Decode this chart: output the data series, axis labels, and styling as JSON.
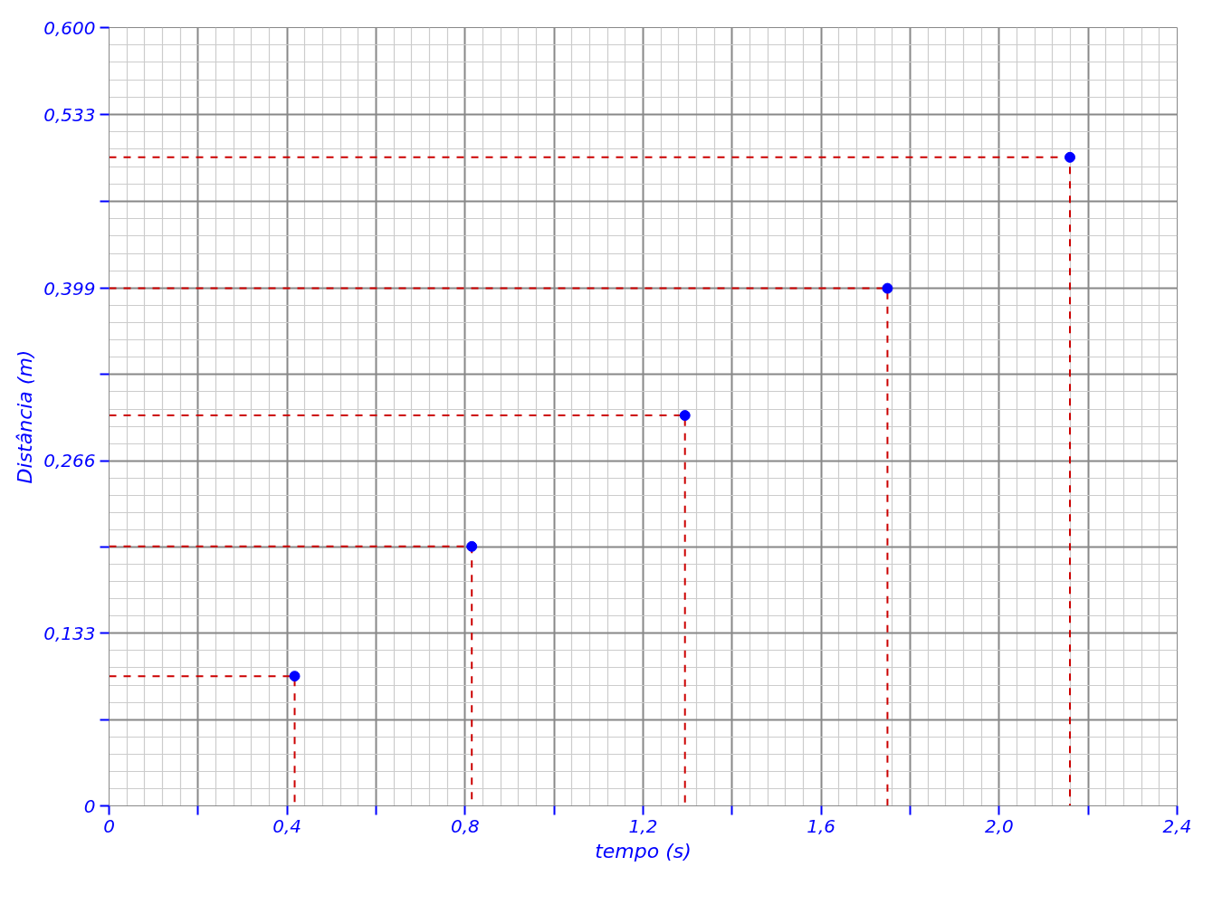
{
  "chart_data": {
    "type": "scatter",
    "xlabel": "tempo (s)",
    "ylabel": "Distância (m)",
    "xlim": [
      0,
      2.4
    ],
    "ylim": [
      0,
      0.6
    ],
    "xticks": [
      {
        "value": 0,
        "label": "0"
      },
      {
        "value": 0.2,
        "label": null
      },
      {
        "value": 0.4,
        "label": "0,4"
      },
      {
        "value": 0.6,
        "label": null
      },
      {
        "value": 0.8,
        "label": "0,8"
      },
      {
        "value": 1.0,
        "label": null
      },
      {
        "value": 1.2,
        "label": "1,2"
      },
      {
        "value": 1.4,
        "label": null
      },
      {
        "value": 1.6,
        "label": "1,6"
      },
      {
        "value": 1.8,
        "label": null
      },
      {
        "value": 2.0,
        "label": "2,0"
      },
      {
        "value": 2.2,
        "label": null
      },
      {
        "value": 2.4,
        "label": "2,4"
      }
    ],
    "yticks": [
      {
        "value": 0,
        "label": "0"
      },
      {
        "value": 0.0665,
        "label": null
      },
      {
        "value": 0.133,
        "label": "0,133"
      },
      {
        "value": 0.1995,
        "label": null
      },
      {
        "value": 0.266,
        "label": "0,266"
      },
      {
        "value": 0.3325,
        "label": null
      },
      {
        "value": 0.399,
        "label": "0,399"
      },
      {
        "value": 0.466,
        "label": null
      },
      {
        "value": 0.533,
        "label": "0,533"
      },
      {
        "value": 0.6,
        "label": "0,600"
      }
    ],
    "grid": true,
    "marker": "circle",
    "series": [
      {
        "color": "#0000ff",
        "x": [
          0.417,
          0.815,
          1.294,
          1.749,
          2.159
        ],
        "values": [
          0.1,
          0.2,
          0.301,
          0.399,
          0.5
        ]
      },
      {
        "type": "line",
        "color": "#cc0000",
        "line_style": "dashed",
        "marker": "none",
        "x": [
          0,
          0.417,
          0.417
        ],
        "values": [
          0.1,
          0.1,
          0
        ]
      },
      {
        "type": "line",
        "color": "#cc0000",
        "line_style": "dashed",
        "marker": "none",
        "x": [
          0,
          0.815,
          0.815
        ],
        "values": [
          0.2,
          0.2,
          0
        ]
      },
      {
        "type": "line",
        "color": "#cc0000",
        "line_style": "dashed",
        "marker": "none",
        "x": [
          0,
          1.294,
          1.294
        ],
        "values": [
          0.301,
          0.301,
          0
        ]
      },
      {
        "type": "line",
        "color": "#cc0000",
        "line_style": "dashed",
        "marker": "none",
        "x": [
          0,
          1.749,
          1.749
        ],
        "values": [
          0.399,
          0.399,
          0
        ]
      },
      {
        "type": "line",
        "color": "#cc0000",
        "line_style": "dashed",
        "marker": "none",
        "x": [
          0,
          2.159,
          2.159
        ],
        "values": [
          0.5,
          0.5,
          0
        ]
      }
    ]
  }
}
